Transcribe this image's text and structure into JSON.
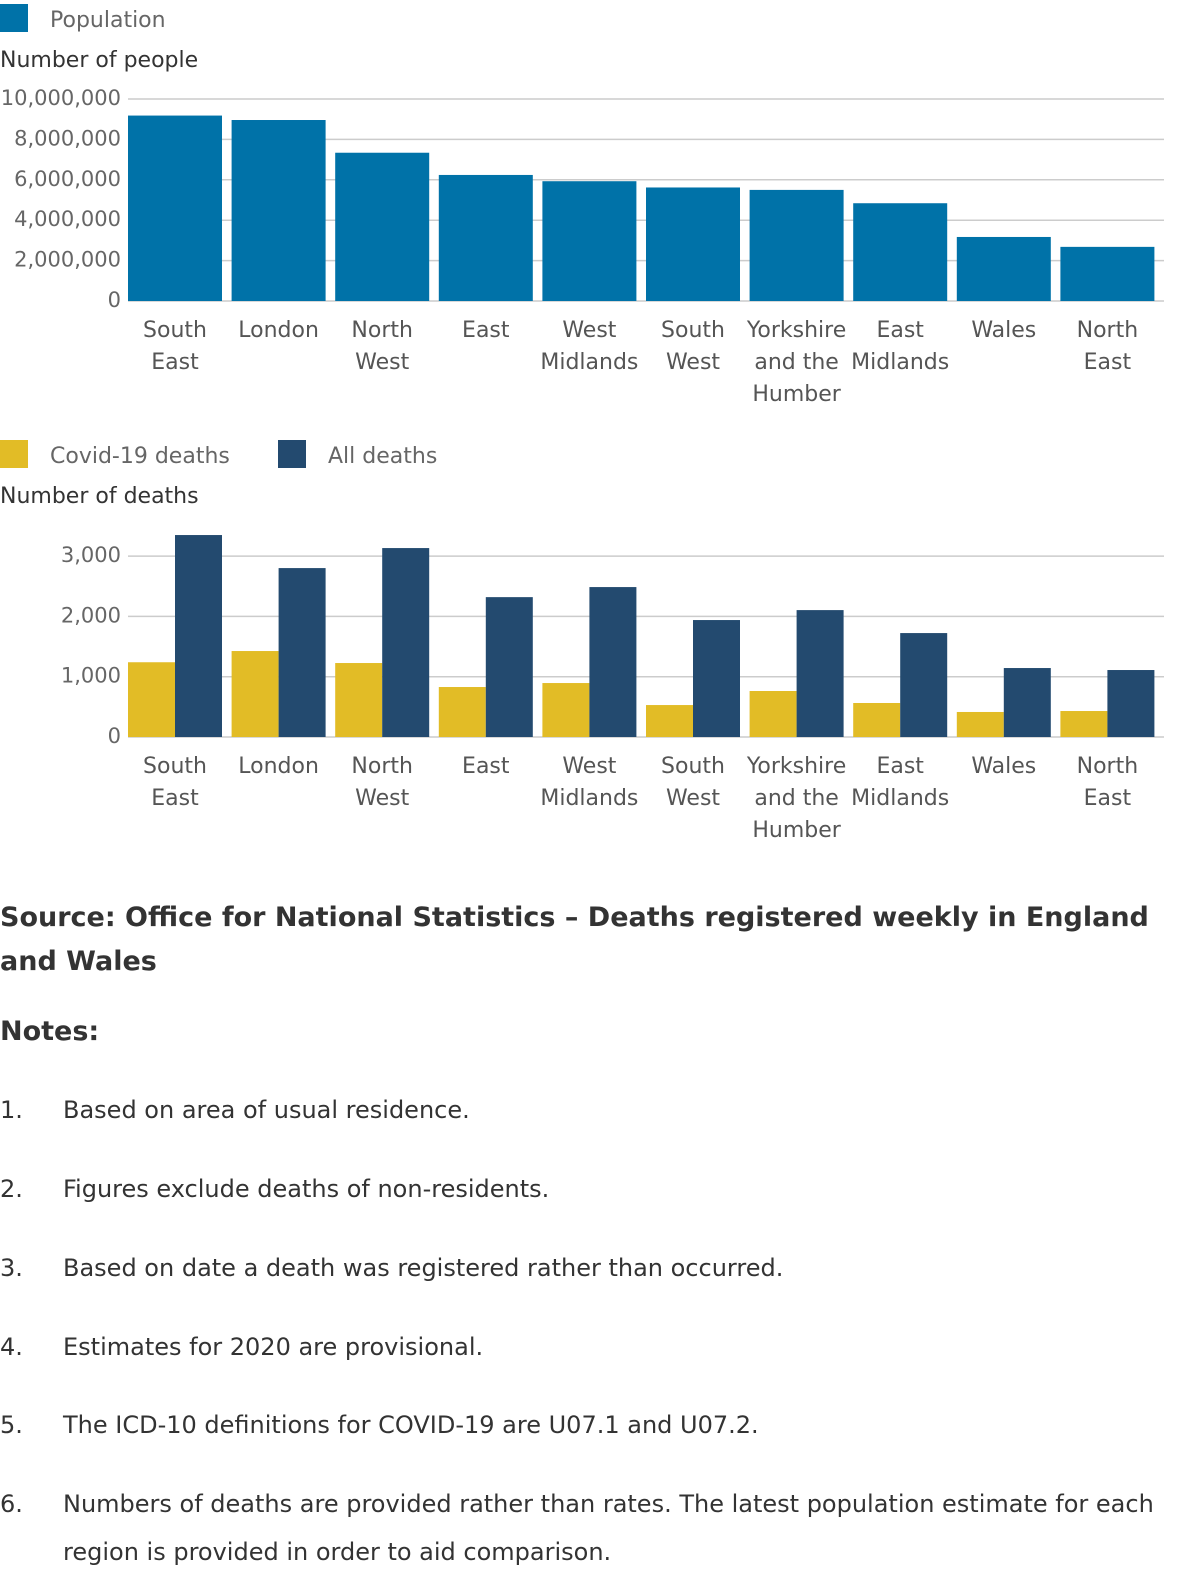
{
  "chart_data": [
    {
      "type": "bar",
      "y_label": "Number of people",
      "categories": [
        "South East",
        "London",
        "North West",
        "East",
        "West Midlands",
        "South West",
        "Yorkshire and the Humber",
        "East Midlands",
        "Wales",
        "North East"
      ],
      "series": [
        {
          "name": "Population",
          "color": "#0072a8",
          "values": [
            9180000,
            8960000,
            7340000,
            6240000,
            5930000,
            5620000,
            5500000,
            4840000,
            3170000,
            2680000
          ]
        }
      ],
      "ylim": [
        0,
        10000000
      ],
      "yticks": [
        0,
        {
          "value": 2000000,
          "label": "2,000,000"
        },
        {
          "value": 4000000,
          "label": "4,000,000"
        },
        {
          "value": 6000000,
          "label": "6,000,000"
        },
        {
          "value": 8000000,
          "label": "8,000,000"
        },
        {
          "value": 10000000,
          "label": "10,000,000"
        }
      ],
      "grid": true
    },
    {
      "type": "bar",
      "y_label": "Number of deaths",
      "categories": [
        "South East",
        "London",
        "North West",
        "East",
        "West Midlands",
        "South West",
        "Yorkshire and the Humber",
        "East Midlands",
        "Wales",
        "North East"
      ],
      "series": [
        {
          "name": "Covid-19 deaths",
          "color": "#e2bc26",
          "values": [
            1240,
            1426,
            1227,
            829,
            895,
            530,
            763,
            564,
            415,
            431
          ]
        },
        {
          "name": "All deaths",
          "color": "#234a6f",
          "values": [
            3350,
            2802,
            3134,
            2320,
            2487,
            1940,
            2105,
            1724,
            1144,
            1111
          ]
        }
      ],
      "ylim": [
        0,
        3500
      ],
      "yticks": [
        0,
        {
          "value": 1000,
          "label": "1,000"
        },
        {
          "value": 2000,
          "label": "2,000"
        },
        {
          "value": 3000,
          "label": "3,000"
        }
      ],
      "grid": true
    }
  ],
  "source": "Source: Office for National Statistics – Deaths registered weekly in England and Wales",
  "notes_heading": "Notes:",
  "notes": [
    {
      "number": "1.",
      "text": "Based on area of usual residence."
    },
    {
      "number": "2.",
      "text": "Figures exclude deaths of non-residents."
    },
    {
      "number": "3.",
      "text": "Based on date a death was registered rather than occurred."
    },
    {
      "number": "4.",
      "text": "Estimates for 2020 are provisional."
    },
    {
      "number": "5.",
      "text": "The ICD-10 definitions for COVID-19 are U07.1 and U07.2."
    },
    {
      "number": "6.",
      "text": "Numbers of deaths are provided rather than rates. The latest population estimate for each region is provided in order to aid comparison."
    }
  ]
}
